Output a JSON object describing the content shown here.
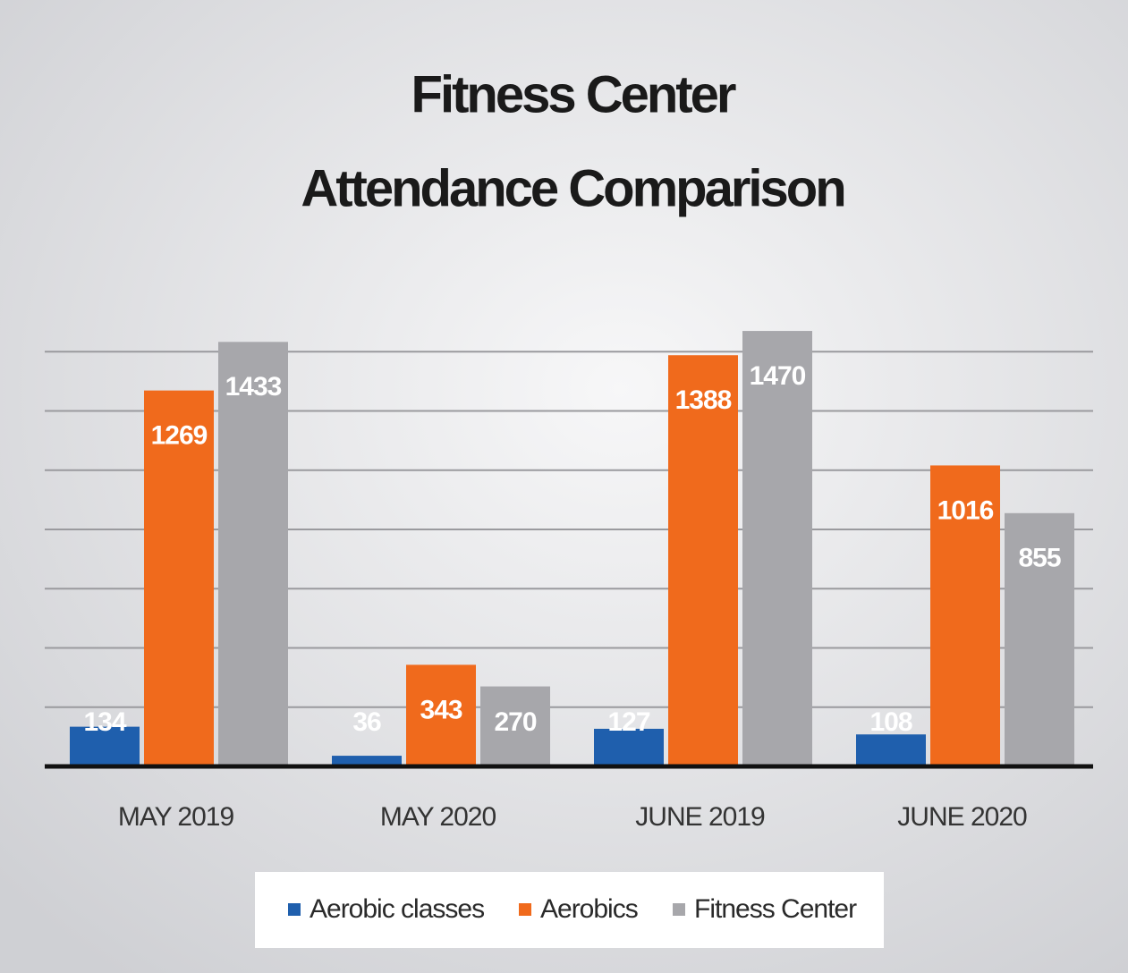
{
  "chart_data": {
    "type": "bar",
    "title": [
      "Fitness Center",
      "Attendance Comparison"
    ],
    "categories": [
      "MAY 2019",
      "MAY 2020",
      "JUNE 2019",
      "JUNE 2020"
    ],
    "series": [
      {
        "name": "Aerobic classes",
        "color": "#1f5fad",
        "values": [
          134,
          36,
          127,
          108
        ]
      },
      {
        "name": "Aerobics",
        "color": "#f06a1c",
        "values": [
          1269,
          343,
          1388,
          1016
        ]
      },
      {
        "name": "Fitness Center",
        "color": "#a7a7ab",
        "values": [
          1433,
          270,
          1470,
          855
        ]
      }
    ],
    "ylim": [
      0,
      1600
    ],
    "yticks": [
      0,
      200,
      400,
      600,
      800,
      1000,
      1200,
      1400
    ],
    "grid": true,
    "legend": "bottom"
  }
}
